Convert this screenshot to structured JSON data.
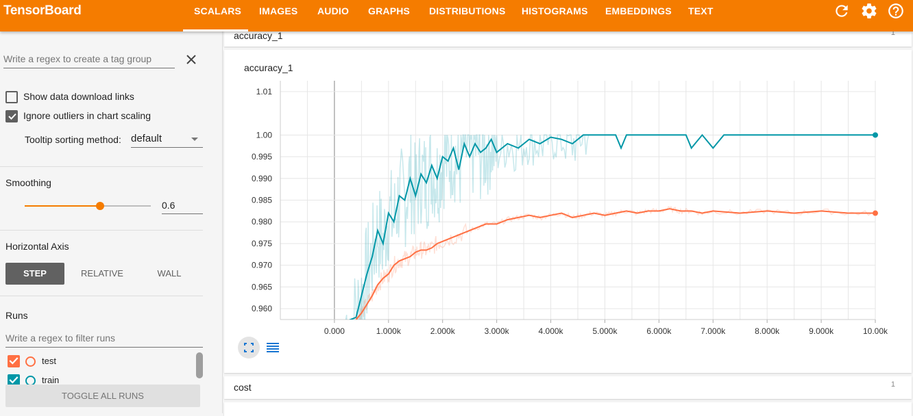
{
  "app": {
    "title": "TensorBoard"
  },
  "tabs": [
    {
      "label": "SCALARS",
      "active": true
    },
    {
      "label": "IMAGES"
    },
    {
      "label": "AUDIO"
    },
    {
      "label": "GRAPHS"
    },
    {
      "label": "DISTRIBUTIONS"
    },
    {
      "label": "HISTOGRAMS"
    },
    {
      "label": "EMBEDDINGS"
    },
    {
      "label": "TEXT"
    }
  ],
  "toolbar": {
    "refresh_icon": "refresh-icon",
    "settings_icon": "gear-icon",
    "help_icon": "help-icon"
  },
  "sidebar": {
    "tag_regex": {
      "placeholder": "Write a regex to create a tag group",
      "value": ""
    },
    "show_download_links": {
      "label": "Show data download links",
      "checked": false
    },
    "ignore_outliers": {
      "label": "Ignore outliers in chart scaling",
      "checked": true
    },
    "tooltip_sort": {
      "label": "Tooltip sorting method:",
      "value": "default"
    },
    "smoothing": {
      "label": "Smoothing",
      "value": "0.6",
      "fraction": 0.6
    },
    "horizontal_axis": {
      "label": "Horizontal Axis",
      "options": [
        "STEP",
        "RELATIVE",
        "WALL"
      ],
      "selected": "STEP"
    },
    "runs": {
      "label": "Runs",
      "filter_placeholder": "Write a regex to filter runs",
      "items": [
        {
          "name": "test",
          "checked": true,
          "color": "#ff7043"
        },
        {
          "name": "train",
          "checked": true,
          "color": "#0097a7"
        }
      ],
      "toggle_all_label": "TOGGLE ALL RUNS"
    }
  },
  "main": {
    "sections": [
      {
        "name": "accuracy_1",
        "count": "1"
      },
      {
        "name": "cost",
        "count": "1"
      }
    ],
    "chart_title": "accuracy_1"
  },
  "colors": {
    "accent": "#f57c00",
    "train": "#0097a7",
    "test": "#ff7043"
  },
  "chart_data": {
    "type": "line",
    "title": "accuracy_1",
    "xlabel": "",
    "ylabel": "",
    "x_ticks": [
      "0.000",
      "1.000k",
      "2.000k",
      "3.000k",
      "4.000k",
      "5.000k",
      "6.000k",
      "7.000k",
      "8.000k",
      "9.000k",
      "10.00k"
    ],
    "y_ticks": [
      "0.960",
      "0.965",
      "0.970",
      "0.975",
      "0.980",
      "0.985",
      "0.990",
      "0.995",
      "1.00",
      "1.01"
    ],
    "xlim": [
      -1000,
      10000
    ],
    "ylim": [
      0.9575,
      1.0125
    ],
    "grid": true,
    "legend": "none",
    "series": [
      {
        "name": "train",
        "color": "#0097a7",
        "x": [
          200,
          400,
          500,
          600,
          700,
          800,
          900,
          1000,
          1100,
          1200,
          1300,
          1400,
          1500,
          1600,
          1700,
          1800,
          1900,
          2000,
          2100,
          2200,
          2300,
          2400,
          2500,
          2600,
          2700,
          2800,
          2900,
          3000,
          3200,
          3400,
          3600,
          3800,
          4000,
          4200,
          4400,
          4600,
          4800,
          5000,
          5200,
          5300,
          5400,
          5500,
          6000,
          6200,
          6500,
          6600,
          6800,
          7000,
          7200,
          8000,
          9000,
          10000
        ],
        "y": [
          0.957,
          0.958,
          0.963,
          0.968,
          0.972,
          0.978,
          0.975,
          0.982,
          0.98,
          0.986,
          0.985,
          0.99,
          0.986,
          0.991,
          0.989,
          0.993,
          0.99,
          0.995,
          0.994,
          0.997,
          0.992,
          0.998,
          0.995,
          0.998,
          0.996,
          0.997,
          0.999,
          0.996,
          0.998,
          0.997,
          0.999,
          0.998,
          0.9995,
          0.999,
          0.998,
          1.0,
          1.0,
          1.0,
          1.0,
          0.997,
          1.0,
          1.0,
          1.0,
          1.0,
          1.0,
          0.997,
          1.0,
          0.997,
          1.0,
          1.0,
          1.0,
          1.0
        ]
      },
      {
        "name": "test",
        "color": "#ff7043",
        "x": [
          400,
          500,
          600,
          700,
          800,
          900,
          1000,
          1100,
          1200,
          1300,
          1400,
          1500,
          1600,
          1700,
          1800,
          1900,
          2000,
          2200,
          2400,
          2600,
          2800,
          3000,
          3200,
          3400,
          3600,
          3800,
          4000,
          4200,
          4400,
          4600,
          4800,
          5000,
          5200,
          5400,
          5600,
          5800,
          6000,
          6200,
          6400,
          6600,
          6800,
          7000,
          7500,
          8000,
          8500,
          9000,
          9500,
          10000
        ],
        "y": [
          0.9575,
          0.959,
          0.961,
          0.963,
          0.9655,
          0.967,
          0.968,
          0.97,
          0.971,
          0.9715,
          0.972,
          0.973,
          0.9735,
          0.9735,
          0.974,
          0.975,
          0.9755,
          0.9765,
          0.9775,
          0.9785,
          0.9795,
          0.9795,
          0.9805,
          0.981,
          0.9815,
          0.981,
          0.9815,
          0.982,
          0.981,
          0.9815,
          0.982,
          0.9815,
          0.982,
          0.9825,
          0.982,
          0.9825,
          0.9825,
          0.983,
          0.9825,
          0.9825,
          0.982,
          0.9825,
          0.982,
          0.9825,
          0.982,
          0.9825,
          0.982,
          0.982
        ]
      }
    ]
  }
}
